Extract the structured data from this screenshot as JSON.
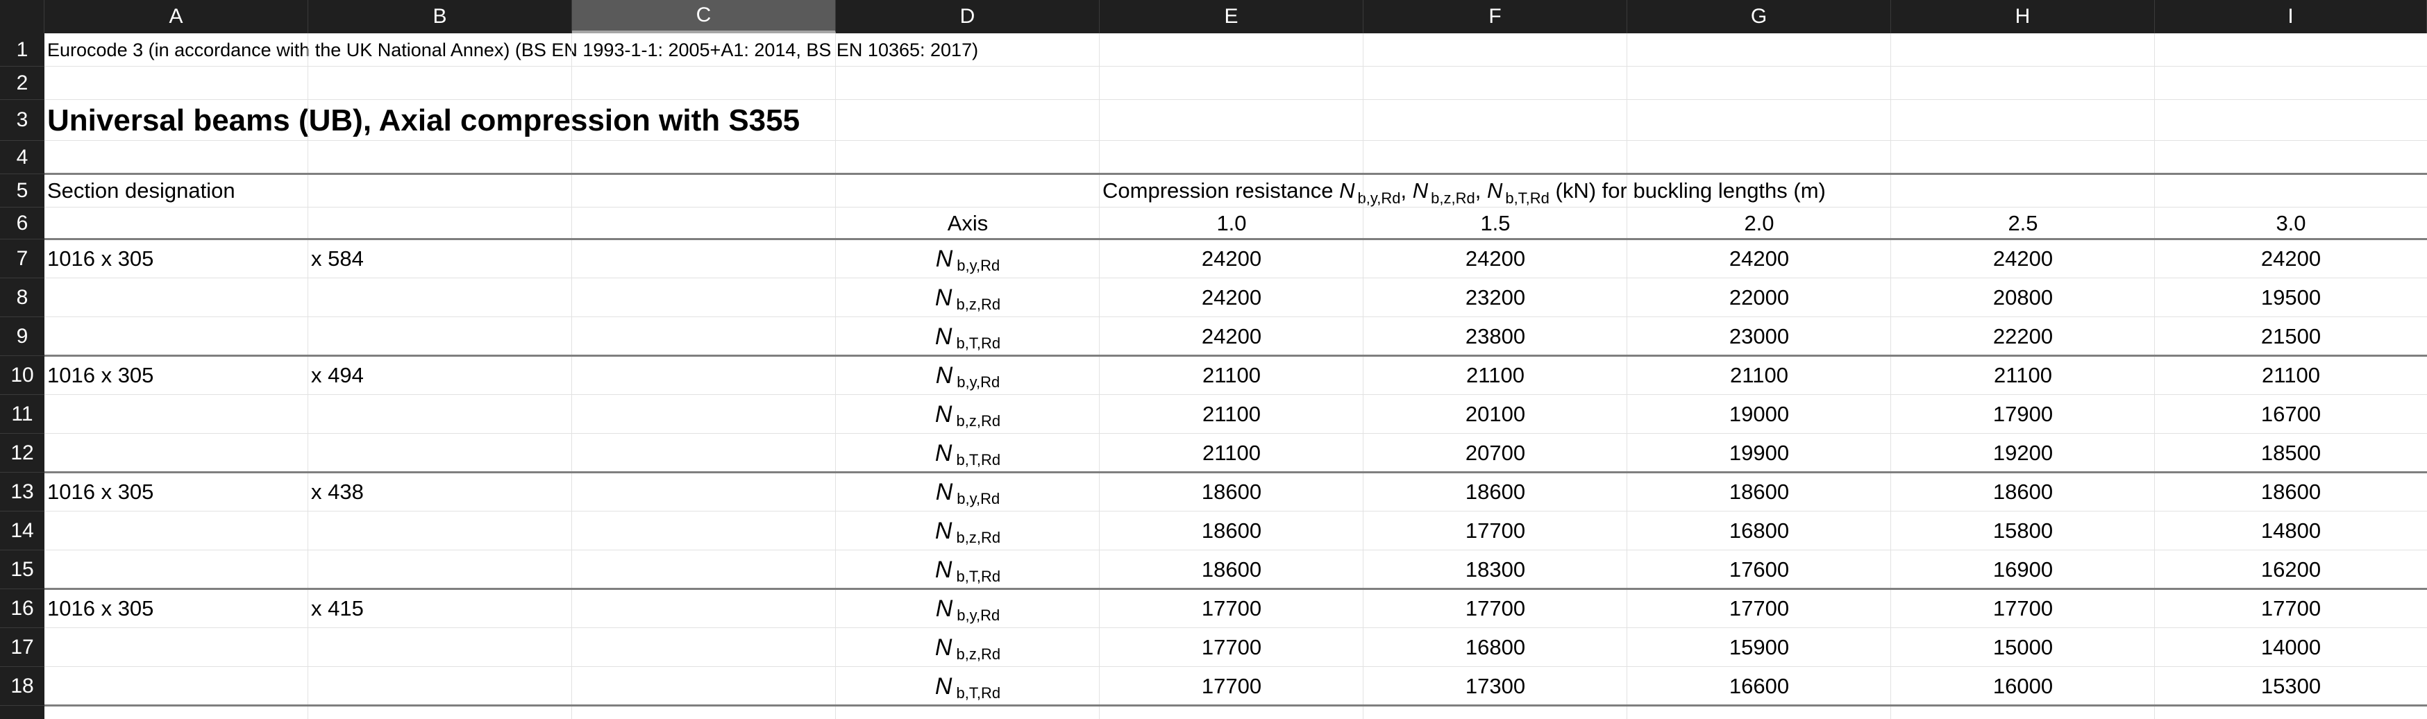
{
  "columns": [
    "A",
    "B",
    "C",
    "D",
    "E",
    "F",
    "G",
    "H",
    "I"
  ],
  "selected_column": "C",
  "row_numbers": [
    "1",
    "2",
    "3",
    "4",
    "5",
    "6",
    "7",
    "8",
    "9",
    "10",
    "11",
    "12",
    "13",
    "14",
    "15",
    "16",
    "17",
    "18"
  ],
  "title_line": "Eurocode 3 (in accordance with the UK National Annex) (BS EN 1993-1-1: 2005+A1: 2014, BS EN 10365: 2017)",
  "main_title": "Universal beams (UB), Axial compression with S355",
  "section_designation_label": "Section designation",
  "compression_header": {
    "prefix": "Compression resistance ",
    "n1": "N",
    "s1": "b,y,Rd",
    "sep1": ", ",
    "n2": "N",
    "s2": "b,z,Rd",
    "sep2": ", ",
    "n3": "N",
    "s3": "b,T,Rd",
    "suffix": " (kN) for buckling lengths (m)"
  },
  "axis_label": "Axis",
  "buckling_lengths": [
    "1.0",
    "1.5",
    "2.0",
    "2.5",
    "3.0"
  ],
  "axis_symbol": "N",
  "axis_subscripts": [
    "b,y,Rd",
    "b,z,Rd",
    "b,T,Rd"
  ],
  "sections": [
    {
      "size": "1016 x 305",
      "mass": "x 584",
      "rows": [
        [
          "24200",
          "24200",
          "24200",
          "24200",
          "24200"
        ],
        [
          "24200",
          "23200",
          "22000",
          "20800",
          "19500"
        ],
        [
          "24200",
          "23800",
          "23000",
          "22200",
          "21500"
        ]
      ]
    },
    {
      "size": "1016 x 305",
      "mass": "x 494",
      "rows": [
        [
          "21100",
          "21100",
          "21100",
          "21100",
          "21100"
        ],
        [
          "21100",
          "20100",
          "19000",
          "17900",
          "16700"
        ],
        [
          "21100",
          "20700",
          "19900",
          "19200",
          "18500"
        ]
      ]
    },
    {
      "size": "1016 x 305",
      "mass": "x 438",
      "rows": [
        [
          "18600",
          "18600",
          "18600",
          "18600",
          "18600"
        ],
        [
          "18600",
          "17700",
          "16800",
          "15800",
          "14800"
        ],
        [
          "18600",
          "18300",
          "17600",
          "16900",
          "16200"
        ]
      ]
    },
    {
      "size": "1016 x 305",
      "mass": "x 415",
      "rows": [
        [
          "17700",
          "17700",
          "17700",
          "17700",
          "17700"
        ],
        [
          "17700",
          "16800",
          "15900",
          "15000",
          "14000"
        ],
        [
          "17700",
          "17300",
          "16600",
          "16000",
          "15300"
        ]
      ]
    }
  ]
}
